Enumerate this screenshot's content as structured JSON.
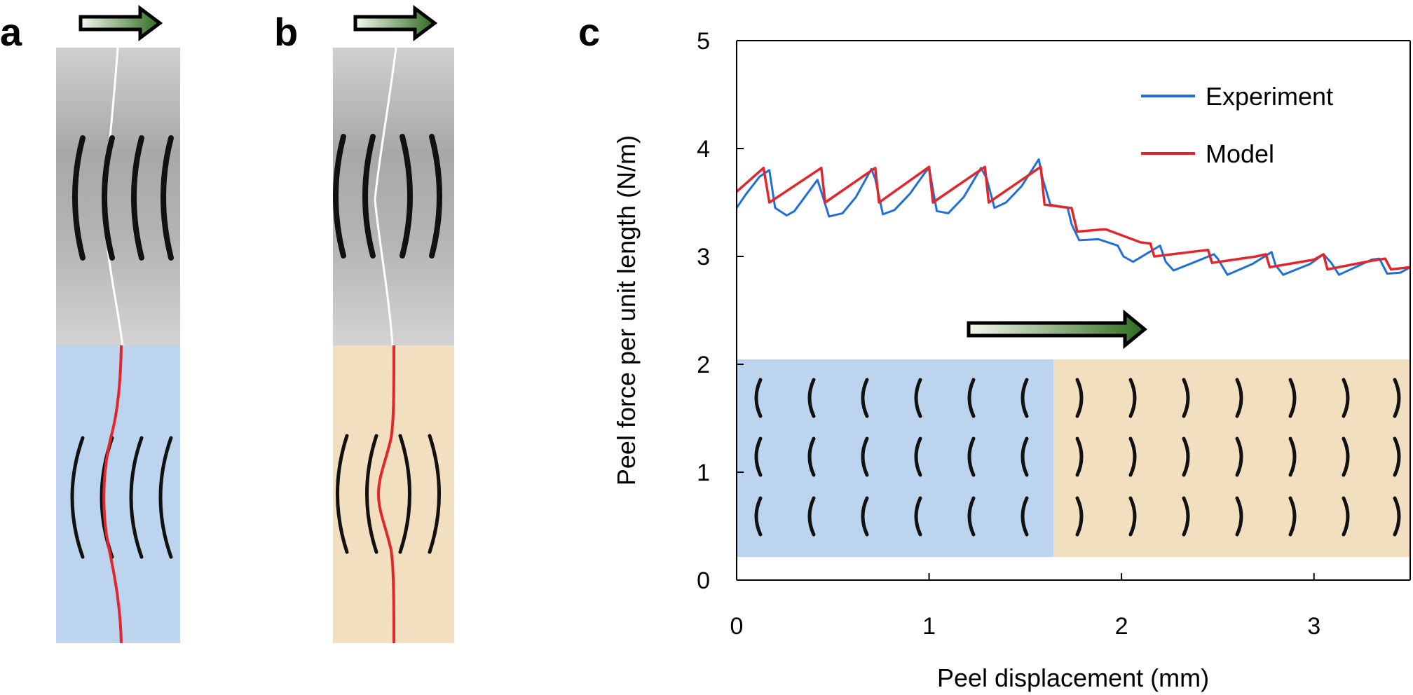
{
  "panels": {
    "a": {
      "label": "a"
    },
    "b": {
      "label": "b"
    },
    "c": {
      "label": "c"
    }
  },
  "colors": {
    "blue_region": "#bcd4ee",
    "tan_region": "#f2dfbf",
    "experiment": "#1f6fd6",
    "model": "#e3262b",
    "arrow_dark": "#2e6b1e",
    "arrow_light": "#f4f8ee"
  },
  "icons": [
    "peel-direction-arrow-icon"
  ],
  "chart_data": {
    "type": "line",
    "xlabel": "Peel displacement (mm)",
    "ylabel": "Peel force per unit length (N/m)",
    "xlim": [
      0,
      3.5
    ],
    "ylim": [
      0,
      5
    ],
    "xticks": [
      "0",
      "1",
      "2",
      "3"
    ],
    "yticks": [
      "0",
      "1",
      "2",
      "3",
      "4",
      "5"
    ],
    "legend_position": "top-right",
    "grid": false,
    "series": [
      {
        "name": "Experiment",
        "x": [
          0,
          0.05,
          0.12,
          0.17,
          0.2,
          0.26,
          0.3,
          0.42,
          0.44,
          0.48,
          0.55,
          0.62,
          0.7,
          0.72,
          0.76,
          0.82,
          0.9,
          0.98,
          1.0,
          1.04,
          1.1,
          1.18,
          1.27,
          1.3,
          1.34,
          1.4,
          1.48,
          1.57,
          1.59,
          1.63,
          1.72,
          1.74,
          1.78,
          1.88,
          1.98,
          2.01,
          2.06,
          2.2,
          2.23,
          2.27,
          2.37,
          2.48,
          2.5,
          2.55,
          2.68,
          2.78,
          2.8,
          2.84,
          2.98,
          3.05,
          3.09,
          3.13,
          3.3,
          3.34,
          3.38,
          3.45,
          3.5
        ],
        "values": [
          3.45,
          3.58,
          3.74,
          3.8,
          3.45,
          3.38,
          3.42,
          3.71,
          3.6,
          3.37,
          3.4,
          3.55,
          3.81,
          3.72,
          3.39,
          3.43,
          3.58,
          3.78,
          3.82,
          3.42,
          3.4,
          3.55,
          3.82,
          3.72,
          3.45,
          3.5,
          3.65,
          3.9,
          3.72,
          3.48,
          3.45,
          3.3,
          3.15,
          3.16,
          3.1,
          3.0,
          2.95,
          3.1,
          2.95,
          2.87,
          2.94,
          3.02,
          2.98,
          2.83,
          2.93,
          3.04,
          2.92,
          2.83,
          2.93,
          3.02,
          2.94,
          2.83,
          2.97,
          2.98,
          2.84,
          2.85,
          2.9
        ]
      },
      {
        "name": "Model",
        "x": [
          0,
          0.14,
          0.17,
          0.44,
          0.46,
          0.72,
          0.74,
          1.0,
          1.02,
          1.29,
          1.31,
          1.58,
          1.6,
          1.73,
          1.74,
          1.77,
          1.9,
          1.92,
          2.1,
          2.15,
          2.17,
          2.4,
          2.45,
          2.47,
          2.7,
          2.75,
          2.77,
          3.0,
          3.05,
          3.07,
          3.3,
          3.37,
          3.4,
          3.5
        ],
        "values": [
          3.6,
          3.82,
          3.5,
          3.82,
          3.5,
          3.82,
          3.5,
          3.83,
          3.5,
          3.83,
          3.5,
          3.83,
          3.48,
          3.45,
          3.45,
          3.23,
          3.25,
          3.25,
          3.13,
          3.12,
          3.0,
          3.05,
          3.06,
          2.94,
          3.0,
          3.02,
          2.9,
          2.97,
          3.02,
          2.88,
          2.96,
          2.98,
          2.88,
          2.9
        ]
      }
    ]
  }
}
